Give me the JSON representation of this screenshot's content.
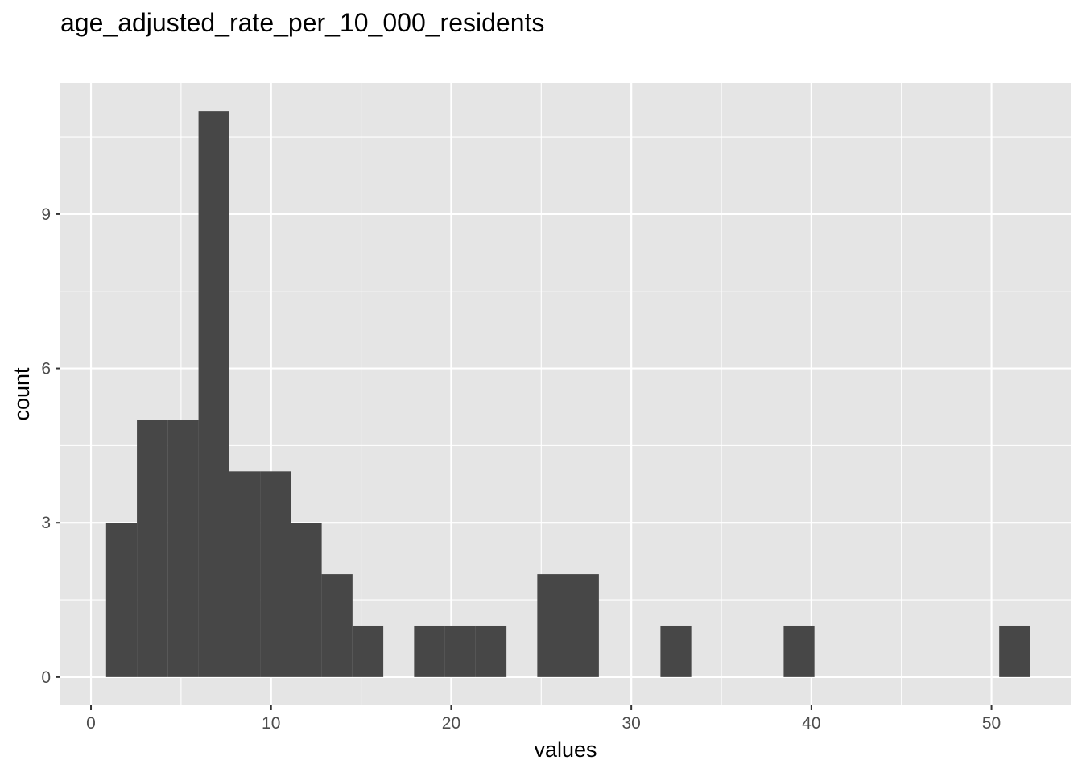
{
  "chart_data": {
    "type": "histogram",
    "title": "age_adjusted_rate_per_10_000_residents",
    "xlabel": "values",
    "ylabel": "count",
    "xlim": [
      -1.7,
      54.4
    ],
    "ylim": [
      -0.55,
      11.55
    ],
    "x_ticks": [
      0,
      10,
      20,
      30,
      40,
      50
    ],
    "y_ticks": [
      0,
      3,
      6,
      9
    ],
    "grid": true,
    "bin_width": 1.71,
    "bins": [
      {
        "x0": 0.84,
        "x1": 2.55,
        "count": 3
      },
      {
        "x0": 2.55,
        "x1": 4.26,
        "count": 5
      },
      {
        "x0": 4.26,
        "x1": 5.97,
        "count": 5
      },
      {
        "x0": 5.97,
        "x1": 7.68,
        "count": 11
      },
      {
        "x0": 7.68,
        "x1": 9.39,
        "count": 4
      },
      {
        "x0": 9.39,
        "x1": 11.1,
        "count": 4
      },
      {
        "x0": 11.1,
        "x1": 12.81,
        "count": 3
      },
      {
        "x0": 12.81,
        "x1": 14.52,
        "count": 2
      },
      {
        "x0": 14.52,
        "x1": 16.23,
        "count": 1
      },
      {
        "x0": 17.94,
        "x1": 19.65,
        "count": 1
      },
      {
        "x0": 19.65,
        "x1": 21.36,
        "count": 1
      },
      {
        "x0": 21.36,
        "x1": 23.07,
        "count": 1
      },
      {
        "x0": 24.78,
        "x1": 26.49,
        "count": 2
      },
      {
        "x0": 26.49,
        "x1": 28.2,
        "count": 2
      },
      {
        "x0": 31.62,
        "x1": 33.33,
        "count": 1
      },
      {
        "x0": 38.46,
        "x1": 40.17,
        "count": 1
      },
      {
        "x0": 50.43,
        "x1": 52.14,
        "count": 1
      }
    ],
    "colors": {
      "panel": "#e5e5e5",
      "grid": "#ffffff",
      "bar": "#474747",
      "tick_text": "#4d4d4d",
      "tick_mark": "#333333"
    }
  }
}
